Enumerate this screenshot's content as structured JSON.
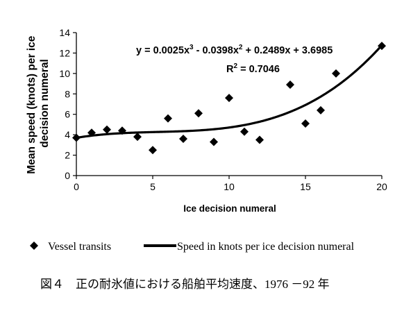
{
  "chart_data": {
    "type": "scatter",
    "xlabel": "Ice decision numeral",
    "ylabel": "Mean speed (knots) per ice decision numeral",
    "xlim": [
      0,
      20
    ],
    "ylim": [
      0,
      14
    ],
    "xticks": [
      0,
      5,
      10,
      15,
      20
    ],
    "yticks": [
      0,
      2,
      4,
      6,
      8,
      10,
      12,
      14
    ],
    "series": [
      {
        "name": "Vessel transits",
        "marker": "diamond",
        "x": [
          0,
          1,
          2,
          3,
          4,
          5,
          6,
          7,
          8,
          9,
          10,
          11,
          12,
          14,
          15,
          16,
          17,
          20
        ],
        "y": [
          3.7,
          4.2,
          4.5,
          4.4,
          3.8,
          2.5,
          5.6,
          3.6,
          6.1,
          3.3,
          7.6,
          4.3,
          3.5,
          8.9,
          5.1,
          6.4,
          10.0,
          12.7
        ]
      },
      {
        "name": "Speed in knots per ice decision numeral",
        "type": "trendline",
        "coefficients": [
          0.0025,
          -0.0398,
          0.2489,
          3.6985
        ]
      }
    ],
    "equation": {
      "prefix": "y = 0.0025x",
      "exp3": "3",
      "mid": " - 0.0398x",
      "exp2": "2",
      "suffix": " + 0.2489x + 3.6985"
    },
    "r_squared": {
      "prefix": "R",
      "exp": "2",
      "suffix": " = 0.7046"
    },
    "legend": {
      "position": "bottom",
      "items": [
        "Vessel transits",
        "Speed in knots per ice decision numeral"
      ]
    },
    "caption": "図４　正の耐氷値における船舶平均速度、1976 －92 年",
    "colors": {
      "ink": "#000000",
      "background": "#ffffff"
    }
  }
}
